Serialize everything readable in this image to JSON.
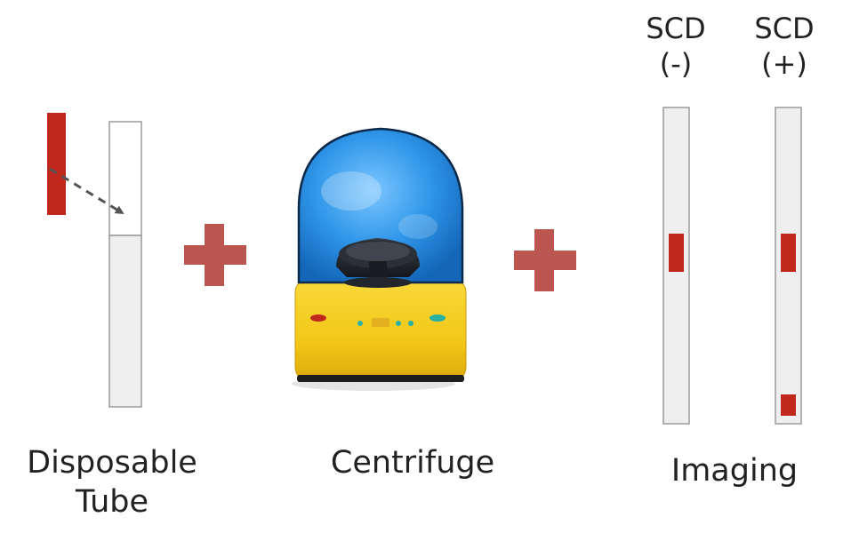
{
  "steps": {
    "tube": {
      "line1": "Disposable",
      "line2": "Tube"
    },
    "centrifuge": {
      "label": "Centrifuge"
    },
    "imaging": {
      "label": "Imaging"
    }
  },
  "scd": {
    "negative": {
      "line1": "SCD",
      "line2": "(-)"
    },
    "positive": {
      "line1": "SCD",
      "line2": "(+)"
    }
  },
  "colors": {
    "sample_red": "#c0281e",
    "plus_sign": "#bb5550",
    "tube_fill": "#efefef",
    "tube_border": "#9a9a9a",
    "centrifuge_dome": "#2f96e8",
    "centrifuge_base": "#f3c818"
  }
}
